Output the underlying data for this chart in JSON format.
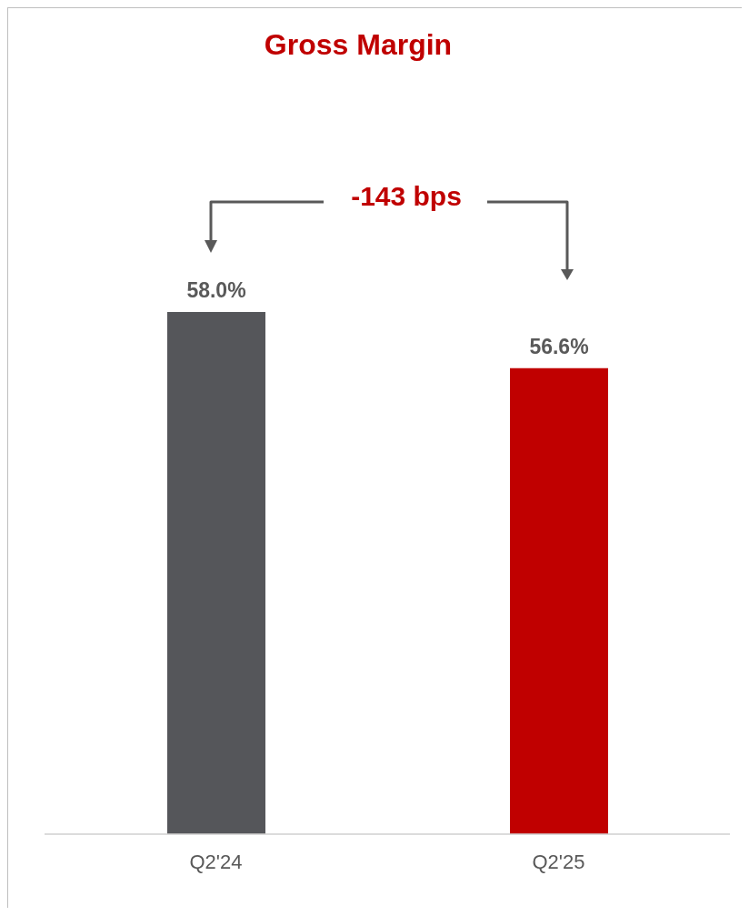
{
  "chart_data": {
    "type": "bar",
    "title": "Gross Margin",
    "categories": [
      "Q2'24",
      "Q2'25"
    ],
    "values": [
      58.0,
      56.6
    ],
    "colors": [
      "#55565a",
      "#c00000"
    ],
    "value_labels": [
      "58.0%",
      "56.6%"
    ],
    "ylim": [
      45,
      58
    ],
    "tick_labels": "x",
    "annotations": [
      "-143 bps"
    ]
  }
}
